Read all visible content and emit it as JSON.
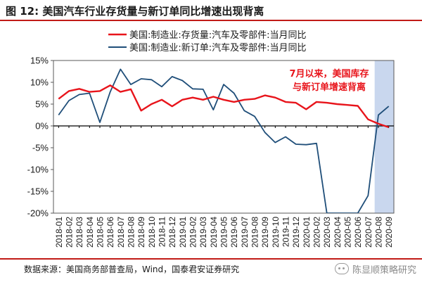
{
  "header": {
    "title": "图 12:   美国汽车行业存货量与新订单同比增速出现背离"
  },
  "footer": {
    "source": "数据来源：美国商务部普查局，Wind，国泰君安证券研究",
    "watermark": "陈显顺策略研究"
  },
  "colors": {
    "series1": "#e8141b",
    "series2": "#1f4e79",
    "accent": "#c11b17",
    "annotation": "#e8141b",
    "highlight": "#c9d7ee"
  },
  "chart_data": {
    "type": "line",
    "title": "",
    "xlabel": "",
    "ylabel": "",
    "ylim": [
      -20,
      15
    ],
    "yticks": [
      15,
      10,
      5,
      0,
      -5,
      -10,
      -15,
      -20
    ],
    "ytick_labels": [
      "15%",
      "10%",
      "5%",
      "0%",
      "-5%",
      "-10%",
      "-15%",
      "-20%"
    ],
    "grid": false,
    "legend_position": "top-left",
    "x": [
      "2018-01",
      "2018-02",
      "2018-03",
      "2018-04",
      "2018-05",
      "2018-06",
      "2018-07",
      "2018-08",
      "2018-09",
      "2018-10",
      "2018-11",
      "2018-12",
      "2019-01",
      "2019-02",
      "2019-03",
      "2019-04",
      "2019-05",
      "2019-06",
      "2019-07",
      "2019-08",
      "2019-09",
      "2019-10",
      "2019-11",
      "2019-12",
      "2020-01",
      "2020-02",
      "2020-03",
      "2020-04",
      "2020-05",
      "2020-06",
      "2020-07",
      "2020-08",
      "2020-09"
    ],
    "series": [
      {
        "name": "美国:制造业:存货量:汽车及零部件:当月同比",
        "values": [
          6.2,
          8.0,
          8.5,
          7.8,
          8.0,
          9.3,
          7.8,
          8.4,
          3.5,
          5.0,
          6.0,
          4.5,
          6.0,
          6.5,
          6.0,
          6.7,
          6.0,
          5.5,
          6.0,
          6.2,
          7.0,
          6.5,
          5.5,
          5.3,
          3.8,
          5.5,
          5.3,
          5.0,
          4.8,
          4.6,
          1.5,
          0.5,
          -0.3
        ]
      },
      {
        "name": "美国:制造业:新订单:汽车及零部件:当月同比",
        "values": [
          2.5,
          5.8,
          7.2,
          7.5,
          0.8,
          7.8,
          13.0,
          9.5,
          10.8,
          10.6,
          9.0,
          11.3,
          10.4,
          8.5,
          8.4,
          3.7,
          9.5,
          7.5,
          3.5,
          2.2,
          -1.5,
          -3.8,
          -2.5,
          -4.2,
          -4.3,
          -4.0,
          -20,
          -20,
          -20,
          -20,
          -16.0,
          2.5,
          4.5
        ]
      }
    ],
    "highlight_range": [
      "2020-08",
      "2020-09"
    ],
    "annotation": [
      "7月以来，美国库存",
      "与新订单增速背离"
    ]
  }
}
